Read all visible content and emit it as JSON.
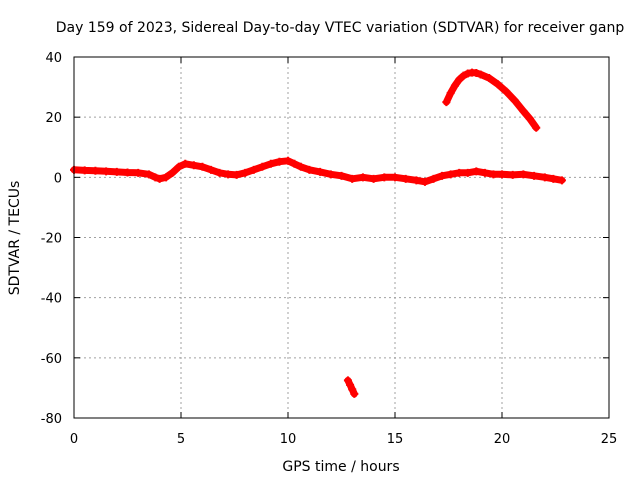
{
  "chart_data": {
    "type": "scatter",
    "title": "Day 159 of 2023, Sidereal Day-to-day VTEC variation (SDTVAR) for receiver ganp",
    "xlabel": "GPS time / hours",
    "ylabel": "SDTVAR / TECUs",
    "xlim": [
      0,
      25
    ],
    "ylim": [
      -80,
      40
    ],
    "xticks": [
      0,
      5,
      10,
      15,
      20,
      25
    ],
    "yticks": [
      -80,
      -60,
      -40,
      -20,
      0,
      20,
      40
    ],
    "grid": true,
    "series_color": "#ff0000",
    "series": [
      {
        "name": "main-trace",
        "x": [
          0.0,
          0.5,
          1.0,
          1.5,
          2.0,
          2.5,
          3.0,
          3.5,
          3.8,
          4.0,
          4.3,
          4.6,
          4.9,
          5.2,
          5.6,
          6.0,
          6.4,
          6.8,
          7.2,
          7.6,
          8.0,
          8.4,
          8.8,
          9.2,
          9.6,
          10.0,
          10.3,
          10.6,
          11.0,
          11.5,
          12.0,
          12.5,
          13.0,
          13.5,
          14.0,
          14.5,
          15.0,
          15.5,
          16.0,
          16.4,
          16.8,
          17.2,
          17.6,
          18.0,
          18.4,
          18.8,
          19.2,
          19.6,
          20.0,
          20.5,
          21.0,
          21.5,
          22.0,
          22.4,
          22.8
        ],
        "y": [
          2.5,
          2.3,
          2.2,
          2.0,
          1.8,
          1.6,
          1.5,
          1.0,
          0.0,
          -0.5,
          0.0,
          1.5,
          3.5,
          4.5,
          4.0,
          3.5,
          2.5,
          1.5,
          1.0,
          0.8,
          1.5,
          2.5,
          3.5,
          4.5,
          5.2,
          5.5,
          4.5,
          3.5,
          2.5,
          1.8,
          1.0,
          0.5,
          -0.5,
          0.0,
          -0.5,
          0.0,
          0.0,
          -0.5,
          -1.0,
          -1.5,
          -0.5,
          0.5,
          1.0,
          1.5,
          1.5,
          2.0,
          1.5,
          1.0,
          1.0,
          0.8,
          1.0,
          0.5,
          0.0,
          -0.5,
          -1.0
        ]
      },
      {
        "name": "arc-segment",
        "x": [
          17.4,
          17.6,
          17.8,
          18.0,
          18.2,
          18.4,
          18.6,
          18.8,
          19.0,
          19.4,
          19.8,
          20.2,
          20.6,
          21.0,
          21.3,
          21.6
        ],
        "y": [
          25.0,
          28.0,
          30.5,
          32.5,
          33.8,
          34.5,
          34.8,
          34.7,
          34.2,
          33.0,
          31.0,
          28.5,
          25.5,
          22.0,
          19.5,
          16.5
        ]
      },
      {
        "name": "outlier-segment",
        "x": [
          12.8,
          12.9,
          13.0,
          13.1
        ],
        "y": [
          -67.5,
          -69.0,
          -70.5,
          -72.0
        ]
      }
    ]
  }
}
